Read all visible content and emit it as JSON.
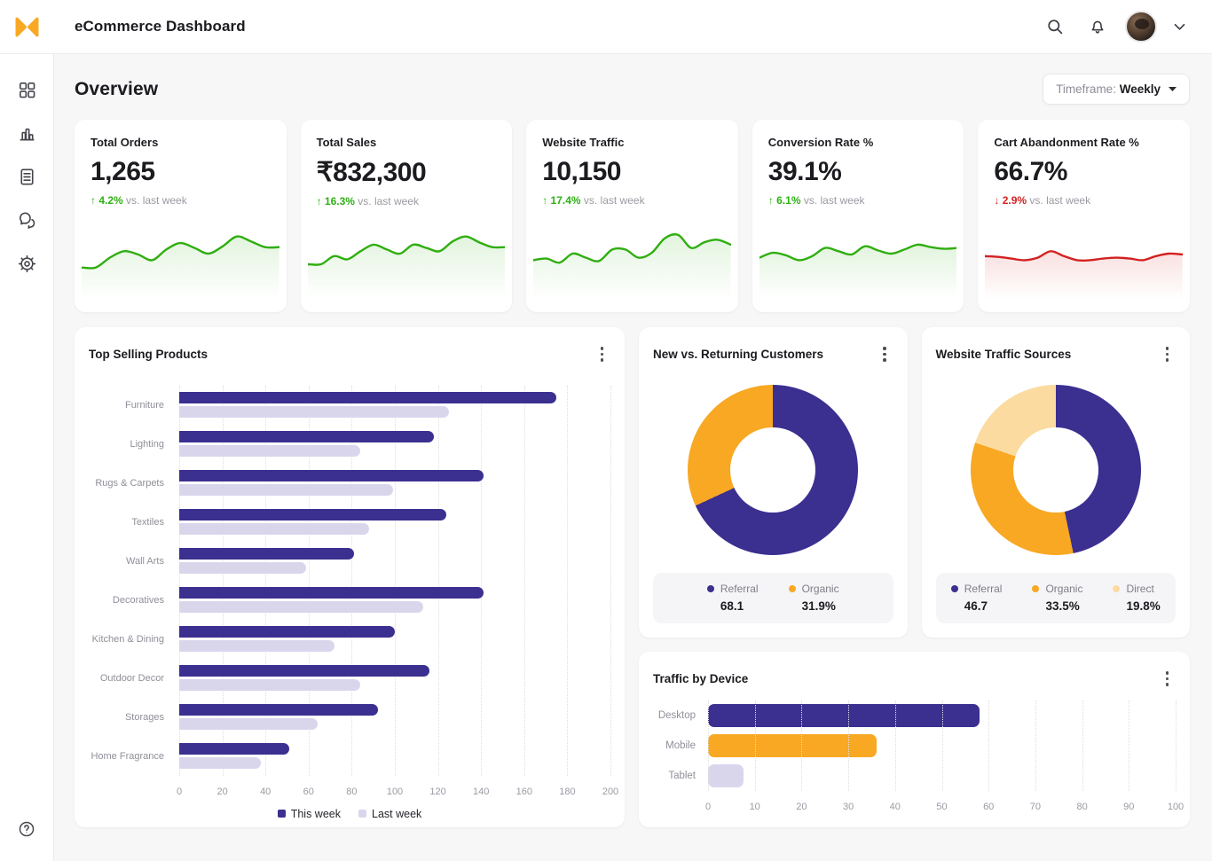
{
  "topbar": {
    "title": "eCommerce Dashboard",
    "icons": [
      "search",
      "notifications",
      "avatar",
      "chevron-down"
    ]
  },
  "sidebar": {
    "items": [
      {
        "name": "dashboard"
      },
      {
        "name": "analytics"
      },
      {
        "name": "orders"
      },
      {
        "name": "messages"
      },
      {
        "name": "settings"
      }
    ],
    "footer_item": {
      "name": "help"
    }
  },
  "page": {
    "title": "Overview",
    "timeframe_label": "Timeframe:",
    "timeframe_value": "Weekly"
  },
  "colors": {
    "purple": "#3b2f90",
    "orange": "#f8a823",
    "cream": "#fbdba0",
    "lavender": "#d9d6ec",
    "green": "#2fae10",
    "red": "#d42020",
    "grid": "#dededd"
  },
  "kpis": [
    {
      "label": "Total Orders",
      "value": "1,265",
      "delta": "4.2%",
      "direction": "up",
      "compare": "vs. last week",
      "trend": "green",
      "spark": [
        46,
        46,
        58,
        66,
        62,
        55,
        68,
        76,
        70,
        63,
        72,
        84,
        78,
        71,
        71
      ]
    },
    {
      "label": "Total Sales",
      "value": "₹832,300",
      "delta": "16.3%",
      "direction": "up",
      "compare": "vs. last week",
      "trend": "green",
      "spark": [
        50,
        50,
        60,
        56,
        66,
        74,
        68,
        63,
        74,
        70,
        66,
        78,
        84,
        77,
        71,
        71
      ]
    },
    {
      "label": "Website Traffic",
      "value": "10,150",
      "delta": "17.4%",
      "direction": "up",
      "compare": "vs. last week",
      "trend": "green",
      "spark": [
        55,
        57,
        52,
        63,
        58,
        54,
        68,
        68,
        58,
        64,
        82,
        86,
        70,
        77,
        80,
        74
      ]
    },
    {
      "label": "Conversion Rate %",
      "value": "39.1%",
      "delta": "6.1%",
      "direction": "up",
      "compare": "vs. last week",
      "trend": "green",
      "spark": [
        58,
        64,
        61,
        55,
        60,
        70,
        66,
        62,
        72,
        67,
        63,
        68,
        74,
        71,
        69,
        70
      ]
    },
    {
      "label": "Cart Abandonment Rate %",
      "value": "66.7%",
      "delta": "2.9%",
      "direction": "down",
      "compare": "vs. last week",
      "trend": "red",
      "spark": [
        60,
        59,
        57,
        55,
        58,
        66,
        60,
        55,
        55,
        57,
        58,
        57,
        55,
        60,
        63,
        62
      ]
    }
  ],
  "chart_data": [
    {
      "type": "bar",
      "orientation": "horizontal",
      "title": "Top Selling Products",
      "categories": [
        "Furniture",
        "Lighting",
        "Rugs & Carpets",
        "Textiles",
        "Wall Arts",
        "Decoratives",
        "Kitchen & Dining",
        "Outdoor Decor",
        "Storages",
        "Home Fragrance"
      ],
      "series": [
        {
          "name": "This week",
          "color": "#3b2f90",
          "values": [
            175,
            118,
            141,
            124,
            81,
            141,
            100,
            116,
            92,
            51
          ]
        },
        {
          "name": "Last week",
          "color": "#d9d6ec",
          "values": [
            125,
            84,
            99,
            88,
            59,
            113,
            72,
            84,
            64,
            38
          ]
        }
      ],
      "xlim": [
        0,
        200
      ],
      "xticks": [
        0,
        20,
        40,
        60,
        80,
        100,
        120,
        140,
        160,
        180,
        200
      ],
      "grid": true,
      "legend_position": "bottom"
    },
    {
      "type": "pie",
      "title": "New vs. Returning Customers",
      "slices": [
        {
          "label": "Referral",
          "value": 68.1,
          "display": "68.1",
          "color": "#3b2f90"
        },
        {
          "label": "Organic",
          "value": 31.9,
          "display": "31.9%",
          "color": "#f8a823"
        }
      ],
      "donut": true,
      "legend_position": "bottom"
    },
    {
      "type": "pie",
      "title": "Website Traffic Sources",
      "slices": [
        {
          "label": "Referral",
          "value": 46.7,
          "display": "46.7",
          "color": "#3b2f90"
        },
        {
          "label": "Organic",
          "value": 33.5,
          "display": "33.5%",
          "color": "#f8a823"
        },
        {
          "label": "Direct",
          "value": 19.8,
          "display": "19.8%",
          "color": "#fbdba0"
        }
      ],
      "donut": true,
      "legend_position": "bottom"
    },
    {
      "type": "bar",
      "orientation": "horizontal",
      "title": "Traffic by Device",
      "categories": [
        "Desktop",
        "Mobile",
        "Tablet"
      ],
      "values": [
        58,
        36,
        7.5
      ],
      "bar_colors": [
        "#3b2f90",
        "#f8a823",
        "#d9d6ec"
      ],
      "xlim": [
        0,
        100
      ],
      "xticks": [
        0,
        10,
        20,
        30,
        40,
        50,
        60,
        70,
        80,
        90,
        100
      ],
      "grid": true
    }
  ]
}
